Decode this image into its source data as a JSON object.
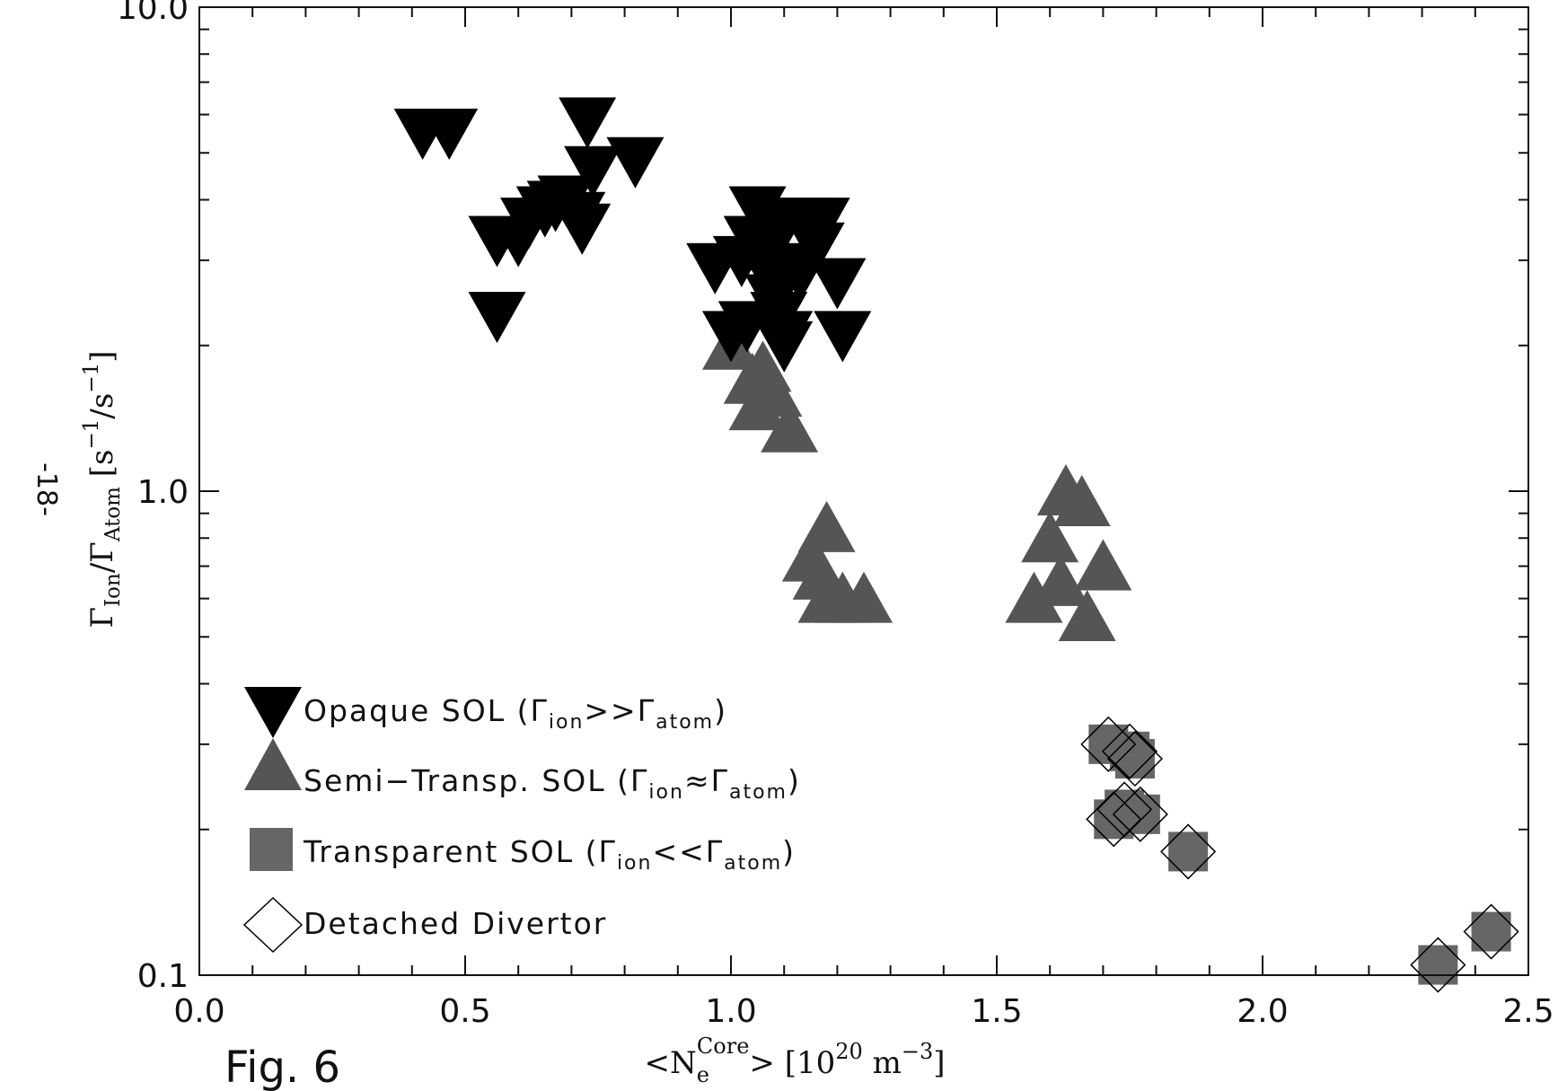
{
  "figure_label": "Fig. 6",
  "page_number": "-18-",
  "chart_data": {
    "type": "scatter",
    "xlabel": {
      "open": "<N",
      "sub": "e",
      "sup": "Core",
      "rest": "> [10",
      "sup2": "20",
      "unit": " m",
      "sup3": "−3",
      "close": "]"
    },
    "ylabel": {
      "g1": "Γ",
      "s1": "Ion",
      "slash": "/Γ",
      "s2": "Atom",
      "open": "  [s",
      "e1": "−1",
      "mid": "/s",
      "e2": "−1",
      "close": "]"
    },
    "xlim": [
      0.0,
      2.5
    ],
    "ylim": [
      0.1,
      10.0
    ],
    "yscale": "log",
    "x_ticks": [
      0.0,
      0.5,
      1.0,
      1.5,
      2.0,
      2.5
    ],
    "x_tick_labels": [
      "0.0",
      "0.5",
      "1.0",
      "1.5",
      "2.0",
      "2.5"
    ],
    "y_ticks": [
      0.1,
      1.0,
      10.0
    ],
    "y_tick_labels": [
      "0.1",
      "1.0",
      "10.0"
    ],
    "grid": false,
    "legend_placement": "lower-left",
    "legend": [
      {
        "marker": "down-triangle",
        "color": "#000000",
        "text": "Opaque SOL (",
        "g1": "Γ",
        "s1": "ion",
        "op": ">>",
        "g2": "Γ",
        "s2": "atom",
        "close": ")"
      },
      {
        "marker": "up-triangle",
        "color": "#555555",
        "text": "Semi−Transp. SOL (",
        "g1": "Γ",
        "s1": "ion",
        "op": "≈",
        "g2": "Γ",
        "s2": "atom",
        "close": ")"
      },
      {
        "marker": "square",
        "color": "#666666",
        "text": "Transparent SOL (",
        "g1": "Γ",
        "s1": "ion",
        "op": "<<",
        "g2": "Γ",
        "s2": "atom",
        "close": ")"
      },
      {
        "marker": "diamond",
        "color": "#000000",
        "text": "Detached Divertor"
      }
    ],
    "series": [
      {
        "name": "Opaque SOL",
        "marker": "down-triangle",
        "color": "#000000",
        "points": [
          [
            0.42,
            5.5
          ],
          [
            0.47,
            5.5
          ],
          [
            0.56,
            3.3
          ],
          [
            0.56,
            2.3
          ],
          [
            0.6,
            3.3
          ],
          [
            0.62,
            3.6
          ],
          [
            0.65,
            3.8
          ],
          [
            0.67,
            3.9
          ],
          [
            0.69,
            4.0
          ],
          [
            0.71,
            3.7
          ],
          [
            0.72,
            3.5
          ],
          [
            0.73,
            5.8
          ],
          [
            0.74,
            4.6
          ],
          [
            0.82,
            4.8
          ],
          [
            0.97,
            2.9
          ],
          [
            1.0,
            2.1
          ],
          [
            1.02,
            3.0
          ],
          [
            1.03,
            2.2
          ],
          [
            1.04,
            3.3
          ],
          [
            1.05,
            3.8
          ],
          [
            1.06,
            3.0
          ],
          [
            1.07,
            3.6
          ],
          [
            1.08,
            2.5
          ],
          [
            1.08,
            2.7
          ],
          [
            1.09,
            3.4
          ],
          [
            1.09,
            2.3
          ],
          [
            1.1,
            2.0
          ],
          [
            1.1,
            2.1
          ],
          [
            1.11,
            2.9
          ],
          [
            1.13,
            2.8
          ],
          [
            1.14,
            3.6
          ],
          [
            1.16,
            3.2
          ],
          [
            1.17,
            3.6
          ],
          [
            1.2,
            2.7
          ],
          [
            1.21,
            2.1
          ]
        ]
      },
      {
        "name": "Semi-Transp. SOL",
        "marker": "up-triangle",
        "color": "#555555",
        "points": [
          [
            1.0,
            2.0
          ],
          [
            1.04,
            1.7
          ],
          [
            1.05,
            1.5
          ],
          [
            1.06,
            1.8
          ],
          [
            1.08,
            1.6
          ],
          [
            1.11,
            1.35
          ],
          [
            1.15,
            0.73
          ],
          [
            1.17,
            0.67
          ],
          [
            1.18,
            0.84
          ],
          [
            1.18,
            0.6
          ],
          [
            1.21,
            0.6
          ],
          [
            1.25,
            0.6
          ],
          [
            1.57,
            0.6
          ],
          [
            1.6,
            0.8
          ],
          [
            1.62,
            0.65
          ],
          [
            1.63,
            1.0
          ],
          [
            1.66,
            0.95
          ],
          [
            1.67,
            0.55
          ],
          [
            1.7,
            0.7
          ]
        ]
      },
      {
        "name": "Transparent SOL",
        "marker": "square",
        "color": "#666666",
        "points": [
          [
            1.71,
            0.3
          ],
          [
            1.72,
            0.21
          ],
          [
            1.74,
            0.22
          ],
          [
            1.75,
            0.29
          ],
          [
            1.76,
            0.28
          ],
          [
            1.77,
            0.215
          ],
          [
            1.86,
            0.18
          ],
          [
            2.33,
            0.105
          ],
          [
            2.43,
            0.123
          ]
        ]
      },
      {
        "name": "Detached Divertor",
        "marker": "diamond",
        "color": "#000000",
        "points": [
          [
            1.71,
            0.3
          ],
          [
            1.72,
            0.21
          ],
          [
            1.74,
            0.22
          ],
          [
            1.75,
            0.29
          ],
          [
            1.76,
            0.28
          ],
          [
            1.77,
            0.215
          ],
          [
            1.86,
            0.18
          ],
          [
            2.33,
            0.105
          ],
          [
            2.43,
            0.123
          ]
        ]
      }
    ]
  }
}
